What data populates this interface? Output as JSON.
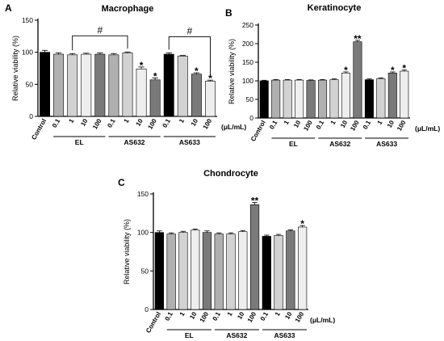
{
  "chart_data": [
    {
      "panel": "A",
      "type": "bar",
      "title": "Macrophage",
      "ylabel": "Relative viability (%)",
      "ylim": [
        0,
        150
      ],
      "yticks": [
        0,
        50,
        100,
        150
      ],
      "categories": [
        "Control",
        "0.1",
        "1",
        "10",
        "100",
        "0.1",
        "1",
        "10",
        "100",
        "0.1",
        "1",
        "10",
        "100"
      ],
      "groups": [
        {
          "label": "EL",
          "start": 1,
          "end": 4
        },
        {
          "label": "AS632",
          "start": 5,
          "end": 8
        },
        {
          "label": "AS633",
          "start": 9,
          "end": 12
        }
      ],
      "unit": "(μL/mL)",
      "values": [
        100,
        97,
        96,
        97,
        97,
        96,
        99,
        74,
        57,
        97,
        94,
        66,
        55
      ],
      "errors": [
        3,
        2,
        2,
        1.5,
        2,
        2,
        1.5,
        3,
        3,
        2,
        1,
        2,
        1.5
      ],
      "colors": [
        "#000000",
        "#b0b0b0",
        "#d2d2d2",
        "#eeeeee",
        "#7a7a7a",
        "#b0b0b0",
        "#d2d2d2",
        "#eeeeee",
        "#7a7a7a",
        "#000000",
        "#d2d2d2",
        "#7a7a7a",
        "#eeeeee"
      ],
      "annotations": [
        {
          "type": "star",
          "index": 7,
          "text": "*"
        },
        {
          "type": "star",
          "index": 8,
          "text": "*"
        },
        {
          "type": "star",
          "index": 11,
          "text": "*"
        },
        {
          "type": "star",
          "index": 12,
          "text": "*"
        },
        {
          "type": "hash",
          "text": "#",
          "from": 2,
          "to": 6
        },
        {
          "type": "hash",
          "text": "#",
          "from": 9,
          "to": 12
        }
      ]
    },
    {
      "panel": "B",
      "type": "bar",
      "title": "Keratinocyte",
      "ylabel": "Relative viability (%)",
      "ylim": [
        0,
        250
      ],
      "yticks": [
        0,
        50,
        100,
        150,
        200,
        250
      ],
      "categories": [
        "Control",
        "0.1",
        "1",
        "10",
        "100",
        "0.1",
        "1",
        "10",
        "100",
        "0.1",
        "1",
        "10",
        "100"
      ],
      "groups": [
        {
          "label": "EL",
          "start": 1,
          "end": 4
        },
        {
          "label": "AS632",
          "start": 5,
          "end": 8
        },
        {
          "label": "AS633",
          "start": 9,
          "end": 12
        }
      ],
      "unit": "(μL/mL)",
      "values": [
        100,
        102,
        102,
        102,
        101,
        102,
        103,
        121,
        205,
        103,
        106,
        121,
        126
      ],
      "errors": [
        1.5,
        1.5,
        1.5,
        1.5,
        1.5,
        1.5,
        2,
        3,
        4,
        2,
        2,
        3,
        3
      ],
      "colors": [
        "#000000",
        "#b0b0b0",
        "#d2d2d2",
        "#eeeeee",
        "#7a7a7a",
        "#b0b0b0",
        "#d2d2d2",
        "#eeeeee",
        "#7a7a7a",
        "#000000",
        "#d2d2d2",
        "#7a7a7a",
        "#eeeeee"
      ],
      "annotations": [
        {
          "type": "star",
          "index": 7,
          "text": "*"
        },
        {
          "type": "star",
          "index": 8,
          "text": "**"
        },
        {
          "type": "star",
          "index": 11,
          "text": "*"
        },
        {
          "type": "star",
          "index": 12,
          "text": "*"
        }
      ]
    },
    {
      "panel": "C",
      "type": "bar",
      "title": "Chondrocyte",
      "ylabel": "Relative viability (%)",
      "ylim": [
        0,
        150
      ],
      "yticks": [
        0,
        50,
        100,
        150
      ],
      "categories": [
        "Control",
        "0.1",
        "1",
        "10",
        "100",
        "0.1",
        "1",
        "10",
        "100",
        "0.1",
        "1",
        "10",
        "100"
      ],
      "groups": [
        {
          "label": "EL",
          "start": 1,
          "end": 4
        },
        {
          "label": "AS632",
          "start": 5,
          "end": 8
        },
        {
          "label": "AS633",
          "start": 9,
          "end": 12
        }
      ],
      "unit": "(μL/mL)",
      "values": [
        100,
        98,
        100,
        103,
        100,
        98,
        98,
        101,
        136,
        95,
        96,
        102,
        107
      ],
      "errors": [
        2,
        1.5,
        1.5,
        1.5,
        2,
        1.5,
        1.5,
        1.5,
        3,
        1.5,
        1.5,
        1.5,
        2
      ],
      "colors": [
        "#000000",
        "#b0b0b0",
        "#d2d2d2",
        "#eeeeee",
        "#7a7a7a",
        "#b0b0b0",
        "#d2d2d2",
        "#eeeeee",
        "#7a7a7a",
        "#000000",
        "#d2d2d2",
        "#7a7a7a",
        "#eeeeee"
      ],
      "annotations": [
        {
          "type": "star",
          "index": 8,
          "text": "**"
        },
        {
          "type": "star",
          "index": 12,
          "text": "*"
        }
      ]
    }
  ]
}
